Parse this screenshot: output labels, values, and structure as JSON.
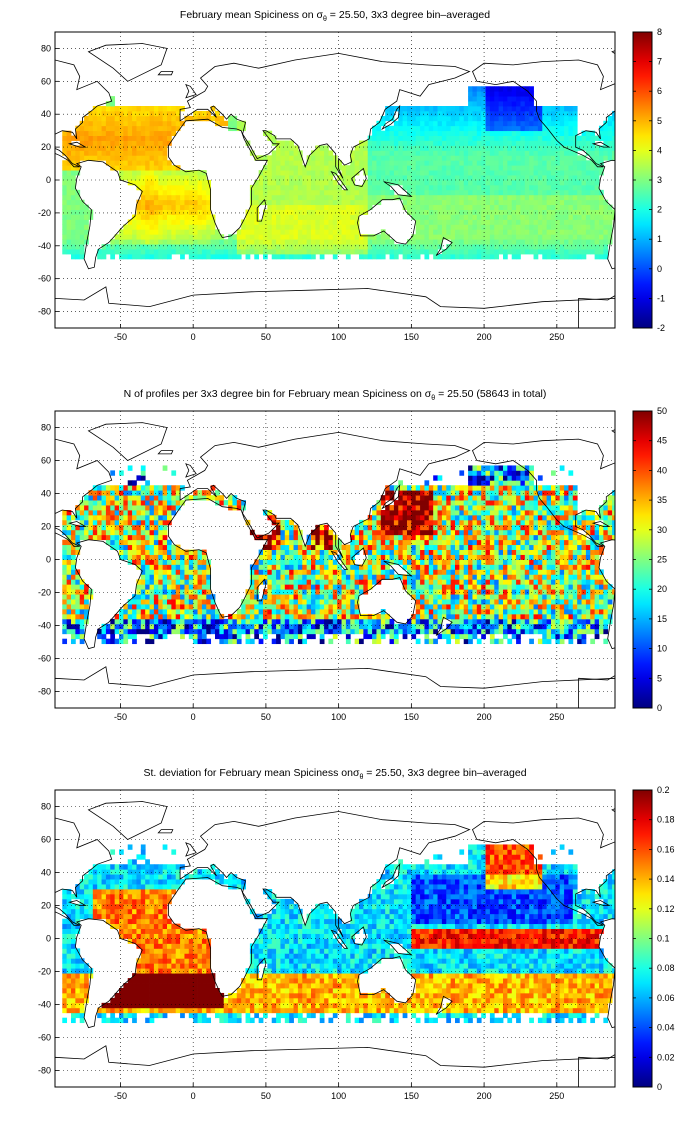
{
  "panels": [
    {
      "id": "mean",
      "title_pre": "February mean Spiciness on ",
      "title_sym": "σ",
      "title_sub": "θ",
      "title_post": " = 25.50, 3x3 degree bin–averaged",
      "xticks": [
        "-50",
        "0",
        "50",
        "100",
        "150",
        "200",
        "250"
      ],
      "yticks": [
        "80",
        "60",
        "40",
        "20",
        "0",
        "-20",
        "-40",
        "-60",
        "-80"
      ],
      "colorbar": {
        "min": -2,
        "max": 8,
        "ticks": [
          "8",
          "7",
          "6",
          "5",
          "4",
          "3",
          "2",
          "1",
          "0",
          "-1",
          "-2"
        ]
      }
    },
    {
      "id": "count",
      "title_pre": "N of profiles per 3x3 degree bin for February mean Spiciness on ",
      "title_sym": "σ",
      "title_sub": "θ",
      "title_post": " = 25.50 (58643 in total)",
      "xticks": [
        "-50",
        "0",
        "50",
        "100",
        "150",
        "200",
        "250"
      ],
      "yticks": [
        "80",
        "60",
        "40",
        "20",
        "0",
        "-20",
        "-40",
        "-60",
        "-80"
      ],
      "colorbar": {
        "min": 0,
        "max": 50,
        "ticks": [
          "50",
          "45",
          "40",
          "35",
          "30",
          "25",
          "20",
          "15",
          "10",
          "5",
          "0"
        ]
      }
    },
    {
      "id": "std",
      "title_pre": "St. deviation for February mean Spiciness on",
      "title_sym": "σ",
      "title_sub": "θ",
      "title_post": " = 25.50, 3x3 degree bin–averaged",
      "xticks": [
        "-50",
        "0",
        "50",
        "100",
        "150",
        "200",
        "250"
      ],
      "yticks": [
        "80",
        "60",
        "40",
        "20",
        "0",
        "-20",
        "-40",
        "-60",
        "-80"
      ],
      "colorbar": {
        "min": 0,
        "max": 0.2,
        "ticks": [
          "0.2",
          "0.18",
          "0.16",
          "0.14",
          "0.12",
          "0.1",
          "0.08",
          "0.06",
          "0.04",
          "0.02",
          "0"
        ]
      }
    }
  ],
  "map_extent": {
    "lon": [
      -95,
      290
    ],
    "lat": [
      -90,
      90
    ]
  },
  "colormap": "jet"
}
